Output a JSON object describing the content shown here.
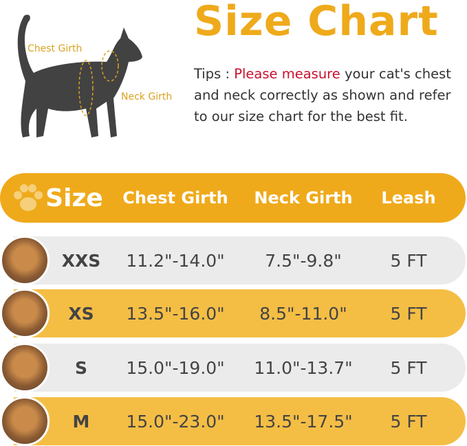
{
  "title": "Size Chart",
  "tips": {
    "prefix": "Tips : ",
    "highlight": "Please measure",
    "rest": " your cat's chest and neck correctly as shown and refer to our size chart for the best fit."
  },
  "diagram": {
    "chest_label": "Chest Girth",
    "neck_label": "Neck Girth"
  },
  "colors": {
    "accent": "#EFAA1B",
    "row_yellow": "#F4BE45",
    "row_grey": "#EBEBEB",
    "highlight": "#C8102E"
  },
  "table": {
    "headers": [
      "Size",
      "Chest Girth",
      "Neck Girth",
      "Leash"
    ],
    "rows": [
      {
        "size": "XXS",
        "chest": "11.2\"-14.0\"",
        "neck": "7.5\"-9.8\"",
        "leash": "5 FT"
      },
      {
        "size": "XS",
        "chest": "13.5\"-16.0\"",
        "neck": "8.5\"-11.0\"",
        "leash": "5 FT"
      },
      {
        "size": "S",
        "chest": "15.0\"-19.0\"",
        "neck": "11.0\"-13.7\"",
        "leash": "5 FT"
      },
      {
        "size": "M",
        "chest": "15.0\"-23.0\"",
        "neck": "13.5\"-17.5\"",
        "leash": "5 FT"
      }
    ]
  }
}
